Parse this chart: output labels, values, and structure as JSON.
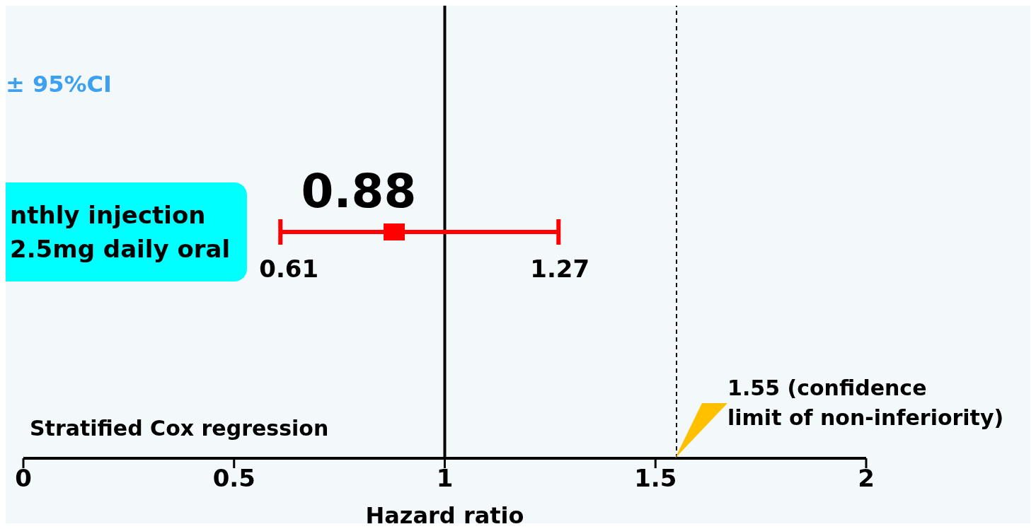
{
  "chart_data": {
    "type": "scatter",
    "orientation": "horizontal",
    "categories": [
      null
    ],
    "values": [
      0.88
    ],
    "errors": [
      [
        0.61,
        1.27
      ]
    ],
    "value_labels": [
      "0.88"
    ],
    "color": "#ff0000",
    "marker": "square",
    "xlim": [
      0,
      2
    ],
    "xticks": [
      0,
      0.5,
      1,
      1.5,
      2
    ],
    "xlabel": "Hazard ratio",
    "tick_labels": "x",
    "ref_lines": [
      {
        "axis": "x",
        "value": 1,
        "color": "#000000",
        "line_style": "solid"
      },
      {
        "axis": "x",
        "value": 1.55,
        "color": "#000000",
        "line_style": "dashed",
        "label": "1.55 (confidence\nlimit of non-inferiority)"
      }
    ],
    "annotations": [
      "± 95%CI",
      "nthly injection\n2.5mg daily oral",
      "Stratified Cox regression",
      "0.61",
      "1.27"
    ]
  }
}
